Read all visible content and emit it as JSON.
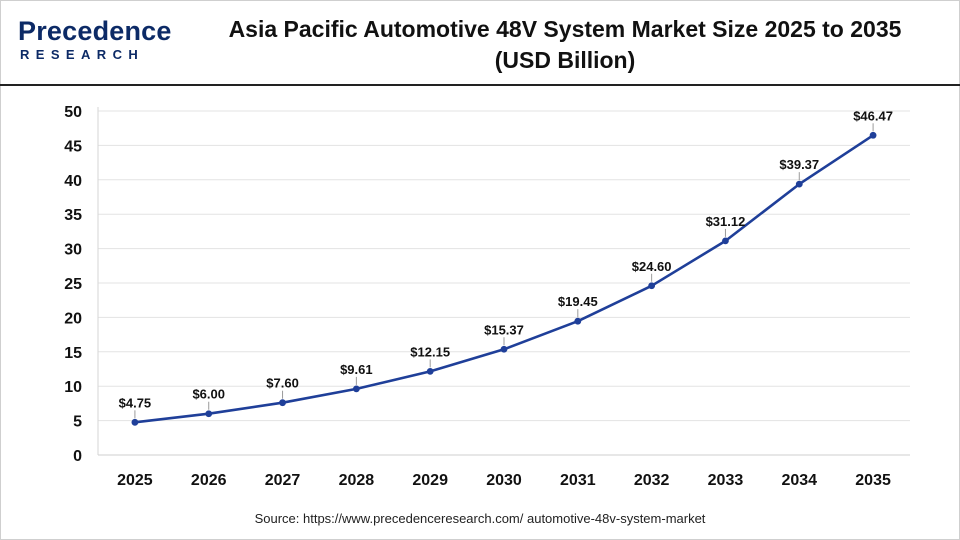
{
  "brand": {
    "name": "Precedence",
    "sub": "RESEARCH"
  },
  "title_line1": "Asia Pacific Automotive 48V System Market Size 2025 to 2035",
  "title_line2": "(USD Billion)",
  "source": "Source: https://www.precedenceresearch.com/ automotive-48v-system-market",
  "colors": {
    "line": "#1f3f99",
    "brand": "#0c2a66",
    "grid": "#e3e3e3"
  },
  "chart_data": {
    "type": "line",
    "title": "Asia Pacific Automotive 48V System Market Size 2025 to 2035 (USD Billion)",
    "categories": [
      "2025",
      "2026",
      "2027",
      "2028",
      "2029",
      "2030",
      "2031",
      "2032",
      "2033",
      "2034",
      "2035"
    ],
    "values": [
      4.75,
      6.0,
      7.6,
      9.61,
      12.15,
      15.37,
      19.45,
      24.6,
      31.12,
      39.37,
      46.47
    ],
    "labels": [
      "$4.75",
      "$6.00",
      "$7.60",
      "$9.61",
      "$12.15",
      "$15.37",
      "$19.45",
      "$24.60",
      "$31.12",
      "$39.37",
      "$46.47"
    ],
    "yticks": [
      "0",
      "5",
      "10",
      "15",
      "20",
      "25",
      "30",
      "35",
      "40",
      "45",
      "50"
    ],
    "ylim": [
      0,
      50
    ],
    "xlabel": "",
    "ylabel": "",
    "grid": true
  }
}
